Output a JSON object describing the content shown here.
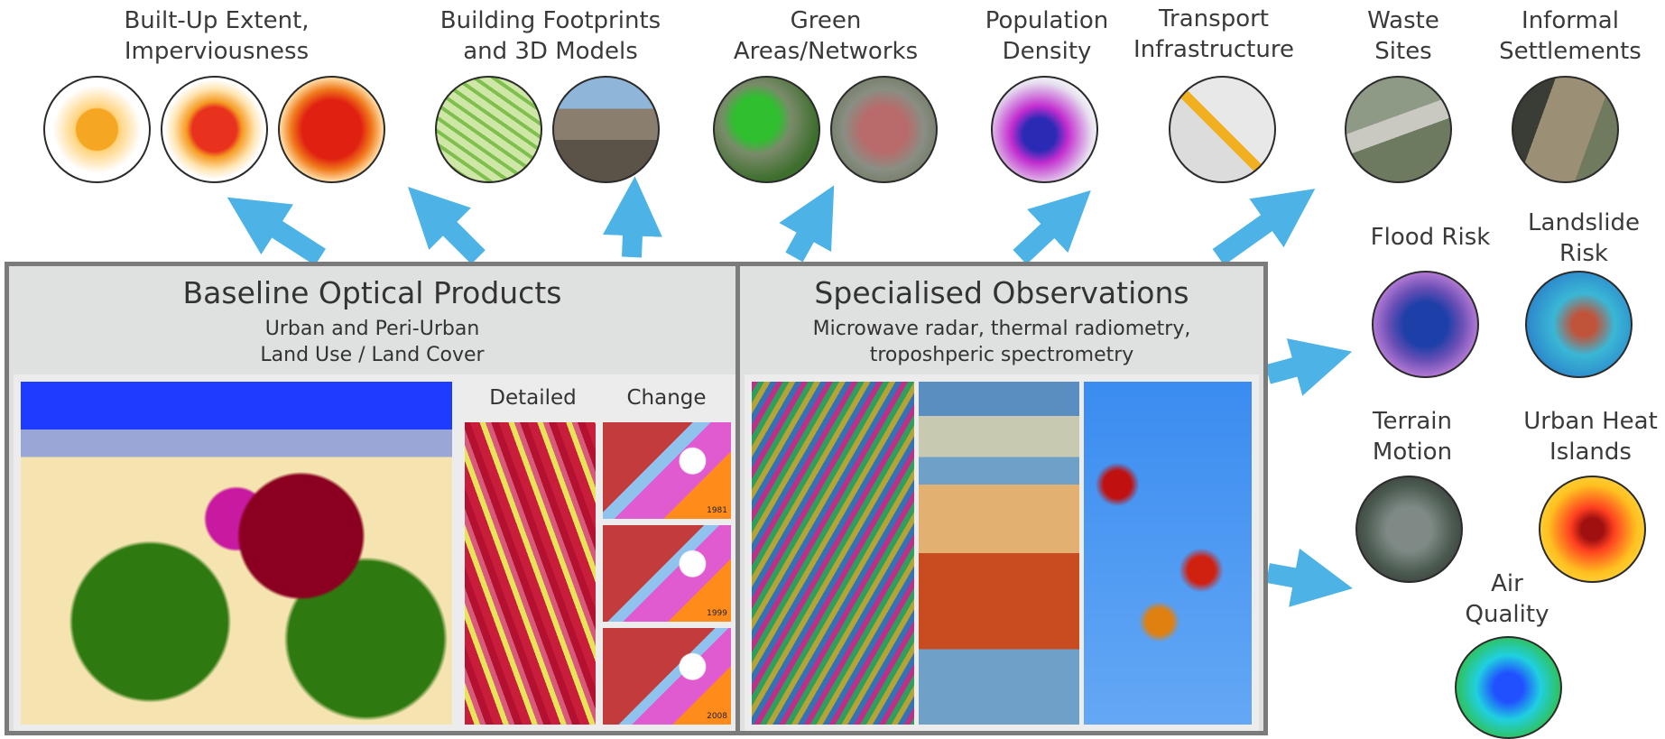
{
  "outputs": {
    "built_up": "Built-Up Extent, Imperviousness",
    "buildings": "Building Footprints and 3D Models",
    "green": "Green Areas/Networks",
    "population": "Population Density",
    "transport": "Transport Infrastructure",
    "waste": "Waste Sites",
    "informal": "Informal Settlements",
    "flood": "Flood Risk",
    "landslide": "Landslide Risk",
    "terrain": "Terrain Motion",
    "heat": "Urban Heat Islands",
    "air": "Air Quality"
  },
  "baseline": {
    "title": "Baseline Optical Products",
    "subtitle_1": "Urban and Peri-Urban",
    "subtitle_2": "Land Use / Land Cover",
    "detailed_label": "Detailed",
    "change_label": "Change",
    "years": [
      "1981",
      "1999",
      "2008"
    ]
  },
  "specialised": {
    "title": "Specialised Observations",
    "subtitle_1": "Microwave radar, thermal radiometry,",
    "subtitle_2": "troposhperic spectrometry"
  },
  "colors": {
    "arrow": "#4db3e6",
    "panel_border": "#7b7b7b",
    "panel_bg": "#dfe0e0"
  }
}
